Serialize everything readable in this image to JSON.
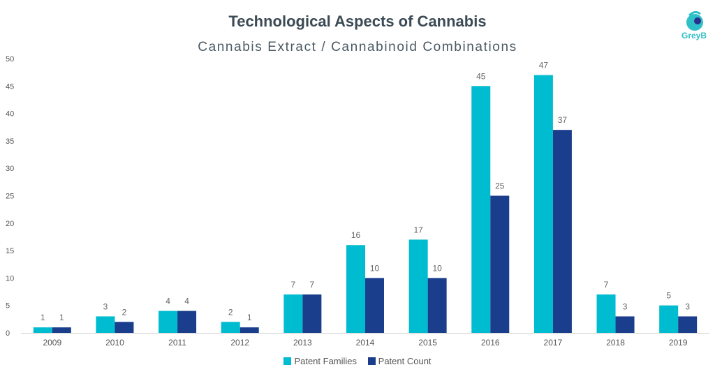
{
  "brand": {
    "name": "GreyB",
    "color": "#2ec0c8"
  },
  "chart_data": {
    "type": "bar",
    "title": "Technological Aspects of Cannabis",
    "subtitle": "Cannabis Extract / Cannabinoid Combinations",
    "xlabel": "",
    "ylabel": "",
    "ylim": [
      0,
      50
    ],
    "yticks": [
      0,
      5,
      10,
      15,
      20,
      25,
      30,
      35,
      40,
      45,
      50
    ],
    "grid": false,
    "legend_position": "bottom",
    "categories": [
      "2009",
      "2010",
      "2011",
      "2012",
      "2013",
      "2014",
      "2015",
      "2016",
      "2017",
      "2018",
      "2019"
    ],
    "series": [
      {
        "name": "Patent Families",
        "color": "#00bcd0",
        "values": [
          1,
          3,
          4,
          2,
          7,
          16,
          17,
          45,
          47,
          7,
          5
        ]
      },
      {
        "name": "Patent Count",
        "color": "#1a3e8c",
        "values": [
          1,
          2,
          4,
          1,
          7,
          10,
          10,
          25,
          37,
          3,
          3
        ]
      }
    ]
  }
}
